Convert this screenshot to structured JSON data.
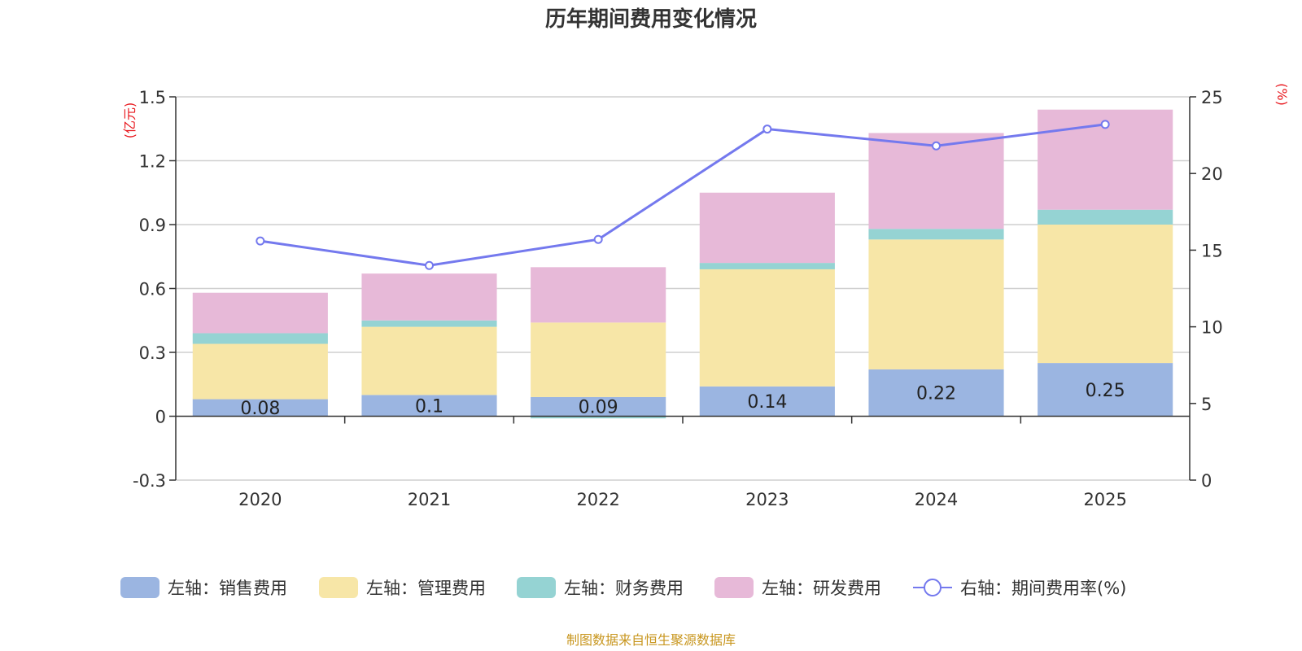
{
  "chart_data": {
    "type": "bar",
    "stacked": true,
    "title": "历年期间费用变化情况",
    "categories": [
      "2020",
      "2021",
      "2022",
      "2023",
      "2024",
      "2025"
    ],
    "left_axis": {
      "unit": "(亿元)",
      "ylim": [
        -0.3,
        1.5
      ],
      "ticks": [
        -0.3,
        0,
        0.3,
        0.6,
        0.9,
        1.2,
        1.5
      ]
    },
    "right_axis": {
      "unit": "(%)",
      "ylim": [
        0,
        25
      ],
      "ticks": [
        0,
        5,
        10,
        15,
        20,
        25
      ]
    },
    "series": [
      {
        "name": "左轴：销售费用",
        "axis": "left",
        "color": "#9bb5e1",
        "values": [
          0.08,
          0.1,
          0.09,
          0.14,
          0.22,
          0.25
        ],
        "labels": [
          "0.08",
          "0.1",
          "0.09",
          "0.14",
          "0.22",
          "0.25"
        ]
      },
      {
        "name": "左轴：管理费用",
        "axis": "left",
        "color": "#f7e6a7",
        "values": [
          0.26,
          0.32,
          0.35,
          0.55,
          0.61,
          0.65
        ]
      },
      {
        "name": "左轴：财务费用",
        "axis": "left",
        "color": "#95d3d3",
        "values": [
          0.05,
          0.03,
          -0.01,
          0.03,
          0.05,
          0.07
        ]
      },
      {
        "name": "左轴：研发费用",
        "axis": "left",
        "color": "#e7b9d8",
        "values": [
          0.19,
          0.22,
          0.26,
          0.33,
          0.45,
          0.47
        ]
      },
      {
        "name": "右轴：期间费用率(%)",
        "axis": "right",
        "type": "line",
        "color": "#7479ee",
        "values": [
          15.6,
          14.0,
          15.7,
          22.9,
          21.8,
          23.2
        ]
      }
    ],
    "source": "制图数据来自恒生聚源数据库"
  }
}
